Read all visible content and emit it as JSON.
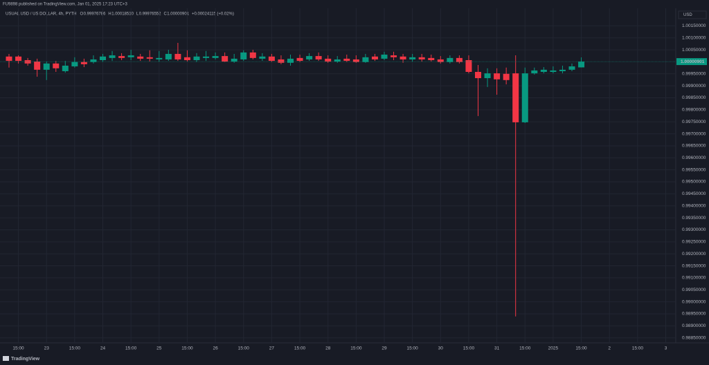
{
  "header": {
    "published": "FU9898 published on TradingView.com, Jan 01, 2025 17:23 UTC+3",
    "symbol": "USUAL USD / US DOLLAR, 4h, PYTH",
    "ohlc": [
      {
        "label": "O",
        "value": "0.99976786"
      },
      {
        "label": "H",
        "value": "1.00018510"
      },
      {
        "label": "L",
        "value": "0.99976552"
      },
      {
        "label": "C",
        "value": "1.00000901"
      }
    ],
    "change": "+0.00024115 (+0.02%)",
    "currency": "USD",
    "logo": "TradingView"
  },
  "chart_data": {
    "type": "candlestick",
    "categories": [
      null,
      "15:00",
      null,
      null,
      "23",
      null,
      null,
      "15:00",
      null,
      null,
      "24",
      null,
      null,
      "15:00",
      null,
      null,
      "25",
      null,
      null,
      "15:00",
      null,
      null,
      "26",
      null,
      null,
      "15:00",
      null,
      null,
      "27",
      null,
      null,
      "15:00",
      null,
      null,
      "28",
      null,
      null,
      "15:00",
      null,
      null,
      "29",
      null,
      null,
      "15:00",
      null,
      null,
      "30",
      null,
      null,
      "15:00",
      null,
      null,
      "31",
      null,
      null,
      "15:00",
      null,
      null,
      "2025",
      null,
      null,
      "15:00",
      null,
      null,
      "2",
      null,
      null,
      "15:00",
      null,
      null,
      "3",
      null
    ],
    "open": [
      1.00022,
      1.00022,
      1.00007,
      1.00001,
      0.99967,
      0.99993,
      0.99961,
      0.99981,
      0.99999,
      0.99999,
      1.00007,
      1.00016,
      1.00024,
      1.00019,
      1.00022,
      1.00019,
      1.0001,
      1.0001,
      1.00033,
      1.00019,
      1.00007,
      1.00016,
      1.00016,
      1.00024,
      1.00001,
      1.0001,
      1.00039,
      1.00013,
      1.00022,
      1.0001,
      0.99996,
      1.00016,
      1.0001,
      1.00024,
      1.00013,
      1.00001,
      1.00013,
      1.0001,
      0.99999,
      1.00022,
      1.00013,
      1.00027,
      1.00022,
      1.0001,
      1.00019,
      1.00016,
      1.0001,
      0.99999,
      1.00016,
      1.00007,
      0.99958,
      0.99932,
      0.99952,
      0.9995,
      0.99952,
      0.99748,
      0.99952,
      0.99958,
      0.99958,
      0.99961,
      0.99967,
      0.99976786,
      null,
      null,
      null,
      null,
      null,
      null,
      null,
      null,
      null,
      null
    ],
    "high": [
      1.00033,
      1.00027,
      1.00016,
      1.00013,
      1.00001,
      1.00004,
      1.00004,
      1.00019,
      1.00013,
      1.00027,
      1.00033,
      1.00045,
      1.00036,
      1.0005,
      1.00033,
      1.00048,
      1.00045,
      1.0005,
      1.00079,
      1.00048,
      1.00036,
      1.00045,
      1.00039,
      1.00039,
      1.00033,
      1.00048,
      1.0005,
      1.00036,
      1.00033,
      1.00027,
      1.0003,
      1.0003,
      1.00036,
      1.00039,
      1.00027,
      1.00024,
      1.0003,
      1.00027,
      1.00033,
      1.00033,
      1.00042,
      1.00042,
      1.00033,
      1.00033,
      1.00033,
      1.0003,
      1.00024,
      1.00027,
      1.00027,
      1.00027,
      0.99987,
      0.99973,
      0.99973,
      0.99976,
      1.00027,
      0.99976,
      0.99976,
      0.99978,
      0.99981,
      0.99984,
      0.99993,
      1.0001851,
      null,
      null,
      null,
      null,
      null,
      null,
      null,
      null,
      null,
      null
    ],
    "low": [
      0.99976,
      0.99993,
      0.99984,
      0.99938,
      0.99924,
      0.99958,
      0.99955,
      0.99976,
      0.99978,
      0.99993,
      0.99999,
      1.00004,
      1.00007,
      1.00007,
      1.00004,
      1.00001,
      1.00001,
      1.00004,
      1.00004,
      1.00001,
      0.99999,
      1.00004,
      1.0001,
      0.99999,
      0.99996,
      1.00004,
      1.0001,
      1.00004,
      0.99999,
      0.9999,
      0.99984,
      0.99999,
      1.00004,
      1.00004,
      0.99996,
      0.99996,
      0.99999,
      0.99996,
      0.99996,
      1.00004,
      1.00007,
      1.00007,
      0.99996,
      1.00001,
      1.00001,
      1.00001,
      0.99993,
      0.99993,
      0.99993,
      0.99952,
      0.99774,
      0.99895,
      0.99863,
      0.99906,
      0.98939,
      0.99745,
      0.99947,
      0.99952,
      0.99952,
      0.99952,
      0.99961,
      0.99976552,
      null,
      null,
      null,
      null,
      null,
      null,
      null,
      null,
      null,
      null
    ],
    "close": [
      1.00004,
      1.00004,
      0.99993,
      0.99967,
      0.99993,
      0.99973,
      0.99984,
      0.99999,
      0.9999,
      1.0001,
      1.00022,
      1.00027,
      1.00016,
      1.00027,
      1.00013,
      1.00013,
      1.00016,
      1.00033,
      1.0001,
      1.00007,
      1.00022,
      1.00022,
      1.00024,
      1.00001,
      1.00013,
      1.00039,
      1.00016,
      1.00022,
      1.00004,
      0.99996,
      1.00013,
      1.00004,
      1.00024,
      1.0001,
      1.00001,
      1.0001,
      1.00004,
      0.99999,
      1.00019,
      1.0001,
      1.0003,
      1.00019,
      1.0001,
      1.00019,
      1.0001,
      1.00007,
      0.99999,
      1.00016,
      0.99999,
      0.99958,
      0.99932,
      0.99952,
      0.99927,
      0.99924,
      0.99748,
      0.99952,
      0.99964,
      0.99967,
      0.99964,
      0.99967,
      0.99981,
      1.00000901,
      null,
      null,
      null,
      null,
      null,
      null,
      null,
      null,
      null,
      null
    ],
    "up_color": "#089981",
    "down_color": "#f23645",
    "last_price_label": "1.00000901",
    "ylim": [
      0.98829,
      1.00223
    ],
    "yticks": [
      {
        "value": 1.0015,
        "label": "1.00150000"
      },
      {
        "value": 1.001,
        "label": "1.00100000"
      },
      {
        "value": 1.0005,
        "label": "1.00050000"
      },
      {
        "value": 0.9995,
        "label": "0.99950000"
      },
      {
        "value": 0.999,
        "label": "0.99900000"
      },
      {
        "value": 0.9985,
        "label": "0.99850000"
      },
      {
        "value": 0.998,
        "label": "0.99800000"
      },
      {
        "value": 0.9975,
        "label": "0.99750000"
      },
      {
        "value": 0.997,
        "label": "0.99700000"
      },
      {
        "value": 0.9965,
        "label": "0.99650000"
      },
      {
        "value": 0.996,
        "label": "0.99600000"
      },
      {
        "value": 0.9955,
        "label": "0.99550000"
      },
      {
        "value": 0.995,
        "label": "0.99500000"
      },
      {
        "value": 0.9945,
        "label": "0.99450000"
      },
      {
        "value": 0.994,
        "label": "0.99400000"
      },
      {
        "value": 0.9935,
        "label": "0.99350000"
      },
      {
        "value": 0.993,
        "label": "0.99300000"
      },
      {
        "value": 0.9925,
        "label": "0.99250000"
      },
      {
        "value": 0.992,
        "label": "0.99200000"
      },
      {
        "value": 0.9915,
        "label": "0.99150000"
      },
      {
        "value": 0.991,
        "label": "0.99100000"
      },
      {
        "value": 0.9905,
        "label": "0.99050000"
      },
      {
        "value": 0.99,
        "label": "0.99000000"
      },
      {
        "value": 0.9895,
        "label": "0.98950000"
      },
      {
        "value": 0.989,
        "label": "0.98900000"
      },
      {
        "value": 0.9885,
        "label": "0.98850000"
      }
    ],
    "grid": true
  }
}
